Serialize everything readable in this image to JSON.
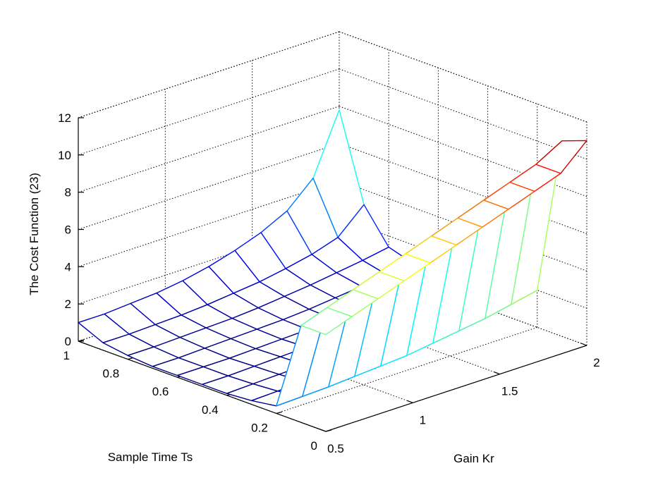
{
  "chart_data": {
    "type": "surface",
    "xlabel": "Gain Kr",
    "ylabel": "Sample Time Ts",
    "zlabel": "The Cost Function (23)",
    "xlim": [
      0.5,
      2
    ],
    "ylim": [
      0,
      1
    ],
    "zlim": [
      0,
      12
    ],
    "xticks": [
      "0.5",
      "1",
      "1.5",
      "2"
    ],
    "yticks": [
      "0",
      "0.2",
      "0.4",
      "0.6",
      "0.8",
      "1"
    ],
    "zticks": [
      "0",
      "2",
      "4",
      "6",
      "8",
      "10",
      "12"
    ],
    "grid": true,
    "colormap": "jet",
    "x": [
      0.5,
      0.65,
      0.8,
      0.95,
      1.1,
      1.25,
      1.4,
      1.55,
      1.7,
      1.85,
      2.0
    ],
    "y": [
      0,
      0.1,
      0.2,
      0.3,
      0.4,
      0.5,
      0.6,
      0.7,
      0.8,
      0.9,
      1.0
    ],
    "z_description": "rows indexed by Ts (y), columns by Kr (x)",
    "z": [
      [
        5.2,
        5.7,
        6.2,
        6.7,
        7.2,
        7.7,
        8.2,
        8.7,
        9.2,
        9.7,
        11.0
      ],
      [
        5.2,
        5.7,
        6.2,
        6.7,
        7.2,
        7.7,
        8.2,
        8.7,
        9.2,
        9.7,
        10.5
      ],
      [
        0.4,
        0.45,
        0.5,
        0.6,
        0.7,
        0.8,
        1.0,
        1.2,
        1.4,
        1.7,
        2.0
      ],
      [
        0.2,
        0.25,
        0.3,
        0.35,
        0.45,
        0.55,
        0.7,
        0.85,
        1.0,
        1.2,
        1.4
      ],
      [
        0.1,
        0.15,
        0.2,
        0.25,
        0.3,
        0.4,
        0.5,
        0.6,
        0.75,
        0.9,
        1.0
      ],
      [
        0.1,
        0.1,
        0.15,
        0.2,
        0.25,
        0.3,
        0.4,
        0.5,
        0.6,
        0.7,
        0.8
      ],
      [
        0.1,
        0.1,
        0.1,
        0.15,
        0.2,
        0.25,
        0.35,
        0.45,
        0.55,
        0.7,
        0.8
      ],
      [
        0.1,
        0.1,
        0.15,
        0.2,
        0.25,
        0.3,
        0.4,
        0.55,
        0.7,
        0.85,
        1.0
      ],
      [
        0.2,
        0.2,
        0.25,
        0.3,
        0.35,
        0.45,
        0.6,
        0.75,
        0.95,
        1.15,
        1.4
      ],
      [
        0.4,
        0.4,
        0.45,
        0.5,
        0.6,
        0.75,
        0.9,
        1.15,
        1.45,
        1.9,
        3.2
      ],
      [
        1.0,
        1.0,
        1.1,
        1.2,
        1.4,
        1.7,
        2.1,
        2.6,
        3.3,
        4.6,
        7.8
      ]
    ]
  }
}
